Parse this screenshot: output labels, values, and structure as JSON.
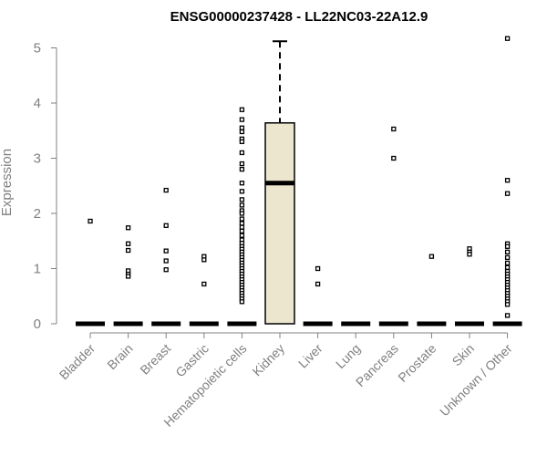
{
  "chart_data": {
    "type": "boxplot",
    "title": "ENSG00000237428 - LL22NC03-22A12.9",
    "xlabel": "",
    "ylabel": "Expression",
    "ylim": [
      0,
      5.2
    ],
    "yticks": [
      "0",
      "1",
      "2",
      "3",
      "4",
      "5"
    ],
    "grid": false,
    "categories": [
      "Bladder",
      "Brain",
      "Breast",
      "Gastric",
      "Hematopoietic cells",
      "Kidney",
      "Liver",
      "Lung",
      "Pancreas",
      "Prostate",
      "Skin",
      "Unknown / Other"
    ],
    "boxes": [
      {
        "category": "Bladder",
        "q1": 0,
        "median": 0,
        "q3": 0,
        "whisker_low": 0,
        "whisker_high": 0,
        "outliers": [
          1.86
        ]
      },
      {
        "category": "Brain",
        "q1": 0,
        "median": 0,
        "q3": 0,
        "whisker_low": 0,
        "whisker_high": 0,
        "outliers": [
          1.74,
          1.45,
          1.33,
          0.96,
          0.9,
          0.86
        ]
      },
      {
        "category": "Breast",
        "q1": 0,
        "median": 0,
        "q3": 0,
        "whisker_low": 0,
        "whisker_high": 0,
        "outliers": [
          2.42,
          1.78,
          1.32,
          1.14,
          0.98
        ]
      },
      {
        "category": "Gastric",
        "q1": 0,
        "median": 0,
        "q3": 0,
        "whisker_low": 0,
        "whisker_high": 0,
        "outliers": [
          1.22,
          1.16,
          0.72
        ]
      },
      {
        "category": "Hematopoietic cells",
        "q1": 0,
        "median": 0,
        "q3": 0,
        "whisker_low": 0,
        "whisker_high": 0,
        "outliers": [
          3.88,
          3.7,
          3.55,
          3.48,
          3.35,
          3.3,
          3.1,
          2.9,
          2.8,
          2.55,
          2.4,
          2.25,
          2.15,
          2.05,
          2.0,
          1.9,
          1.82,
          1.75,
          1.68,
          1.6,
          1.52,
          1.46,
          1.4,
          1.35,
          1.3,
          1.25,
          1.2,
          1.15,
          1.1,
          1.05,
          1.0,
          0.95,
          0.9,
          0.85,
          0.8,
          0.75,
          0.7,
          0.65,
          0.6,
          0.55,
          0.5,
          0.45,
          0.4
        ]
      },
      {
        "category": "Kidney",
        "q1": 0,
        "median": 2.55,
        "q3": 3.64,
        "whisker_low": 0,
        "whisker_high": 5.12,
        "outliers": []
      },
      {
        "category": "Liver",
        "q1": 0,
        "median": 0,
        "q3": 0,
        "whisker_low": 0,
        "whisker_high": 0,
        "outliers": [
          1.0,
          0.72
        ]
      },
      {
        "category": "Lung",
        "q1": 0,
        "median": 0,
        "q3": 0,
        "whisker_low": 0,
        "whisker_high": 0,
        "outliers": []
      },
      {
        "category": "Pancreas",
        "q1": 0,
        "median": 0,
        "q3": 0,
        "whisker_low": 0,
        "whisker_high": 0,
        "outliers": [
          3.53,
          3.0
        ]
      },
      {
        "category": "Prostate",
        "q1": 0,
        "median": 0,
        "q3": 0,
        "whisker_low": 0,
        "whisker_high": 0,
        "outliers": [
          1.22
        ]
      },
      {
        "category": "Skin",
        "q1": 0,
        "median": 0,
        "q3": 0,
        "whisker_low": 0,
        "whisker_high": 0,
        "outliers": [
          1.36,
          1.3,
          1.26
        ]
      },
      {
        "category": "Unknown / Other",
        "q1": 0,
        "median": 0,
        "q3": 0,
        "whisker_low": 0,
        "whisker_high": 0,
        "outliers": [
          5.17,
          2.6,
          2.36,
          1.45,
          1.4,
          1.3,
          1.2,
          1.1,
          1.02,
          0.95,
          0.9,
          0.85,
          0.8,
          0.75,
          0.7,
          0.65,
          0.6,
          0.55,
          0.5,
          0.45,
          0.4,
          0.35,
          0.15
        ]
      }
    ],
    "colors": {
      "kidney_box_fill": "#ede6cf",
      "box_stroke": "#000000",
      "axis": "#808080",
      "outlier": "#000000"
    }
  }
}
